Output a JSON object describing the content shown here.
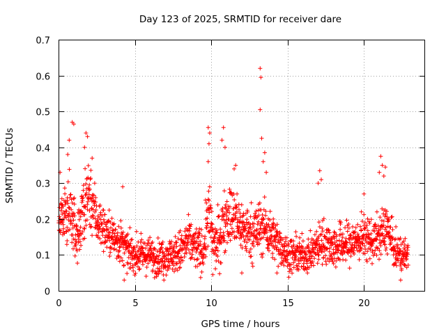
{
  "chart_data": {
    "type": "scatter",
    "title": "Day 123 of 2025, SRMTID for receiver dare",
    "xlabel": "GPS time / hours",
    "ylabel": "SRMTID / TECUs",
    "xlim": [
      0,
      24
    ],
    "ylim": [
      0,
      0.7
    ],
    "grid": true,
    "marker": "+",
    "marker_color": "#ff0000",
    "xticks": [
      0,
      5,
      10,
      15,
      20
    ],
    "xtick_labels": [
      "0",
      "5",
      "10",
      "15",
      "20"
    ],
    "yticks": [
      0,
      0.1,
      0.2,
      0.3,
      0.4,
      0.5,
      0.6,
      0.7
    ],
    "ytick_labels": [
      "0",
      "0.1",
      "0.2",
      "0.3",
      "0.4",
      "0.5",
      "0.6",
      "0.7"
    ],
    "envelope": {
      "hours": [
        0.0,
        0.3,
        0.6,
        0.9,
        1.2,
        1.6,
        2.0,
        2.5,
        3.0,
        3.5,
        4.0,
        4.5,
        5.0,
        5.5,
        6.0,
        6.5,
        7.0,
        7.5,
        8.0,
        8.5,
        9.0,
        9.5,
        9.8,
        10.2,
        10.6,
        11.0,
        11.5,
        12.0,
        12.5,
        13.0,
        13.5,
        14.0,
        14.5,
        15.0,
        15.5,
        16.0,
        16.5,
        17.0,
        17.5,
        18.0,
        18.5,
        19.0,
        19.5,
        20.0,
        20.5,
        21.0,
        21.5,
        22.0,
        22.5,
        22.9
      ],
      "median": [
        0.2,
        0.22,
        0.24,
        0.2,
        0.15,
        0.22,
        0.28,
        0.2,
        0.17,
        0.15,
        0.14,
        0.11,
        0.1,
        0.1,
        0.1,
        0.09,
        0.1,
        0.1,
        0.11,
        0.14,
        0.12,
        0.11,
        0.22,
        0.12,
        0.15,
        0.22,
        0.2,
        0.18,
        0.16,
        0.17,
        0.18,
        0.15,
        0.13,
        0.1,
        0.1,
        0.1,
        0.1,
        0.13,
        0.14,
        0.12,
        0.13,
        0.13,
        0.14,
        0.15,
        0.14,
        0.15,
        0.18,
        0.11,
        0.1,
        0.1
      ],
      "spread": [
        0.06,
        0.06,
        0.08,
        0.07,
        0.05,
        0.08,
        0.09,
        0.06,
        0.05,
        0.05,
        0.05,
        0.04,
        0.04,
        0.04,
        0.04,
        0.04,
        0.04,
        0.04,
        0.05,
        0.05,
        0.05,
        0.05,
        0.08,
        0.05,
        0.07,
        0.07,
        0.07,
        0.06,
        0.06,
        0.07,
        0.06,
        0.05,
        0.05,
        0.04,
        0.04,
        0.04,
        0.04,
        0.05,
        0.05,
        0.05,
        0.05,
        0.05,
        0.05,
        0.05,
        0.05,
        0.05,
        0.06,
        0.04,
        0.04,
        0.03
      ],
      "spacing_hours": 0.012
    },
    "spikes": [
      {
        "x": 0.9,
        "y": 0.47
      },
      {
        "x": 1.0,
        "y": 0.465
      },
      {
        "x": 0.7,
        "y": 0.42
      },
      {
        "x": 0.6,
        "y": 0.38
      },
      {
        "x": 1.8,
        "y": 0.44
      },
      {
        "x": 1.9,
        "y": 0.43
      },
      {
        "x": 1.7,
        "y": 0.4
      },
      {
        "x": 2.2,
        "y": 0.37
      },
      {
        "x": 0.1,
        "y": 0.33
      },
      {
        "x": 4.2,
        "y": 0.29
      },
      {
        "x": 9.8,
        "y": 0.455
      },
      {
        "x": 9.9,
        "y": 0.44
      },
      {
        "x": 9.85,
        "y": 0.41
      },
      {
        "x": 9.8,
        "y": 0.36
      },
      {
        "x": 10.8,
        "y": 0.455
      },
      {
        "x": 10.7,
        "y": 0.42
      },
      {
        "x": 10.9,
        "y": 0.4
      },
      {
        "x": 11.6,
        "y": 0.35
      },
      {
        "x": 11.5,
        "y": 0.34
      },
      {
        "x": 13.2,
        "y": 0.62
      },
      {
        "x": 13.25,
        "y": 0.595
      },
      {
        "x": 13.2,
        "y": 0.505
      },
      {
        "x": 13.3,
        "y": 0.425
      },
      {
        "x": 13.5,
        "y": 0.385
      },
      {
        "x": 13.4,
        "y": 0.36
      },
      {
        "x": 13.6,
        "y": 0.33
      },
      {
        "x": 17.1,
        "y": 0.335
      },
      {
        "x": 17.2,
        "y": 0.31
      },
      {
        "x": 17.0,
        "y": 0.3
      },
      {
        "x": 20.0,
        "y": 0.27
      },
      {
        "x": 21.1,
        "y": 0.375
      },
      {
        "x": 21.2,
        "y": 0.35
      },
      {
        "x": 21.4,
        "y": 0.345
      },
      {
        "x": 21.0,
        "y": 0.33
      },
      {
        "x": 21.3,
        "y": 0.32
      },
      {
        "x": 10.1,
        "y": 0.045
      },
      {
        "x": 4.3,
        "y": 0.03
      },
      {
        "x": 6.9,
        "y": 0.03
      },
      {
        "x": 22.4,
        "y": 0.03
      },
      {
        "x": 12.0,
        "y": 0.05
      },
      {
        "x": 14.3,
        "y": 0.05
      }
    ]
  }
}
